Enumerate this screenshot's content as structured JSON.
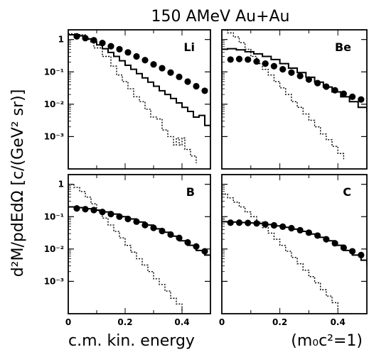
{
  "chart_data": {
    "type": "line",
    "title": "150 AMeV Au+Au",
    "xlabel_main": "c.m. kin. energy",
    "xlabel_units": "(m₀c²=1)",
    "ylabel": "d²M/pdEdΩ  [c/(GeV² sr)]",
    "xlim": [
      0,
      0.5
    ],
    "ylim_log10": [
      -4,
      0.3
    ],
    "x_ticks": [
      {
        "value": 0,
        "label": "0"
      },
      {
        "value": 0.2,
        "label": "0.2"
      },
      {
        "value": 0.4,
        "label": "0.4"
      }
    ],
    "y_ticks": [
      {
        "value": 1,
        "label": "1"
      },
      {
        "value": 0.1,
        "label": "10⁻¹"
      },
      {
        "value": 0.01,
        "label": "10⁻²"
      },
      {
        "value": 0.001,
        "label": "10⁻³"
      }
    ],
    "panels": [
      {
        "label": "Li",
        "points": [
          [
            0.03,
            1.25
          ],
          [
            0.06,
            1.1
          ],
          [
            0.09,
            0.95
          ],
          [
            0.12,
            0.78
          ],
          [
            0.15,
            0.62
          ],
          [
            0.18,
            0.5
          ],
          [
            0.21,
            0.4
          ],
          [
            0.24,
            0.3
          ],
          [
            0.27,
            0.23
          ],
          [
            0.3,
            0.17
          ],
          [
            0.33,
            0.13
          ],
          [
            0.36,
            0.095
          ],
          [
            0.39,
            0.07
          ],
          [
            0.42,
            0.05
          ],
          [
            0.45,
            0.036
          ],
          [
            0.48,
            0.026
          ]
        ],
        "solid": [
          [
            0,
            1.4
          ],
          [
            0.02,
            1.4
          ],
          [
            0.04,
            1.3
          ],
          [
            0.06,
            1.05
          ],
          [
            0.08,
            0.85
          ],
          [
            0.1,
            0.68
          ],
          [
            0.12,
            0.52
          ],
          [
            0.14,
            0.4
          ],
          [
            0.16,
            0.3
          ],
          [
            0.18,
            0.22
          ],
          [
            0.2,
            0.16
          ],
          [
            0.22,
            0.12
          ],
          [
            0.24,
            0.088
          ],
          [
            0.26,
            0.065
          ],
          [
            0.28,
            0.048
          ],
          [
            0.3,
            0.036
          ],
          [
            0.32,
            0.026
          ],
          [
            0.34,
            0.02
          ],
          [
            0.36,
            0.015
          ],
          [
            0.38,
            0.011
          ],
          [
            0.4,
            0.008
          ],
          [
            0.42,
            0.006
          ],
          [
            0.44,
            0.004
          ],
          [
            0.46,
            0.0045
          ],
          [
            0.48,
            0.0022
          ],
          [
            0.5,
            0.0018
          ]
        ],
        "dotted": [
          [
            0,
            1.5
          ],
          [
            0.03,
            1.4
          ],
          [
            0.06,
            1.0
          ],
          [
            0.09,
            0.55
          ],
          [
            0.12,
            0.3
          ],
          [
            0.15,
            0.15
          ],
          [
            0.17,
            0.08
          ],
          [
            0.19,
            0.05
          ],
          [
            0.21,
            0.03
          ],
          [
            0.23,
            0.017
          ],
          [
            0.25,
            0.012
          ],
          [
            0.27,
            0.007
          ],
          [
            0.29,
            0.004
          ],
          [
            0.31,
            0.0035
          ],
          [
            0.33,
            0.0016
          ],
          [
            0.35,
            0.001
          ],
          [
            0.37,
            0.00055
          ],
          [
            0.38,
            0.0009
          ],
          [
            0.39,
            0.00055
          ],
          [
            0.4,
            0.0009
          ],
          [
            0.41,
            0.0004
          ],
          [
            0.43,
            0.00025
          ],
          [
            0.45,
            0.00015
          ]
        ]
      },
      {
        "label": "Be",
        "points": [
          [
            0.03,
            0.24
          ],
          [
            0.06,
            0.25
          ],
          [
            0.09,
            0.24
          ],
          [
            0.12,
            0.21
          ],
          [
            0.15,
            0.18
          ],
          [
            0.18,
            0.15
          ],
          [
            0.21,
            0.12
          ],
          [
            0.24,
            0.095
          ],
          [
            0.27,
            0.075
          ],
          [
            0.3,
            0.058
          ],
          [
            0.33,
            0.045
          ],
          [
            0.36,
            0.035
          ],
          [
            0.39,
            0.027
          ],
          [
            0.42,
            0.021
          ],
          [
            0.45,
            0.017
          ],
          [
            0.48,
            0.014
          ]
        ],
        "solid": [
          [
            0,
            0.5
          ],
          [
            0.02,
            0.52
          ],
          [
            0.05,
            0.48
          ],
          [
            0.08,
            0.42
          ],
          [
            0.11,
            0.36
          ],
          [
            0.14,
            0.3
          ],
          [
            0.17,
            0.24
          ],
          [
            0.2,
            0.18
          ],
          [
            0.23,
            0.13
          ],
          [
            0.26,
            0.095
          ],
          [
            0.29,
            0.068
          ],
          [
            0.32,
            0.048
          ],
          [
            0.35,
            0.034
          ],
          [
            0.38,
            0.024
          ],
          [
            0.41,
            0.017
          ],
          [
            0.44,
            0.012
          ],
          [
            0.47,
            0.008
          ],
          [
            0.5,
            0.0055
          ]
        ],
        "dotted": [
          [
            0,
            2.0
          ],
          [
            0.02,
            1.6
          ],
          [
            0.04,
            1.2
          ],
          [
            0.06,
            0.8
          ],
          [
            0.08,
            0.5
          ],
          [
            0.1,
            0.3
          ],
          [
            0.12,
            0.18
          ],
          [
            0.14,
            0.12
          ],
          [
            0.16,
            0.08
          ],
          [
            0.18,
            0.05
          ],
          [
            0.2,
            0.032
          ],
          [
            0.22,
            0.02
          ],
          [
            0.24,
            0.012
          ],
          [
            0.26,
            0.008
          ],
          [
            0.28,
            0.005
          ],
          [
            0.3,
            0.0032
          ],
          [
            0.32,
            0.002
          ],
          [
            0.34,
            0.0012
          ],
          [
            0.36,
            0.0008
          ],
          [
            0.38,
            0.0005
          ],
          [
            0.4,
            0.0003
          ],
          [
            0.42,
            0.0002
          ]
        ]
      },
      {
        "label": "B",
        "points": [
          [
            0.03,
            0.18
          ],
          [
            0.06,
            0.17
          ],
          [
            0.09,
            0.16
          ],
          [
            0.12,
            0.14
          ],
          [
            0.15,
            0.12
          ],
          [
            0.18,
            0.1
          ],
          [
            0.21,
            0.085
          ],
          [
            0.24,
            0.07
          ],
          [
            0.27,
            0.055
          ],
          [
            0.3,
            0.045
          ],
          [
            0.33,
            0.036
          ],
          [
            0.36,
            0.028
          ],
          [
            0.39,
            0.022
          ],
          [
            0.42,
            0.016
          ],
          [
            0.45,
            0.012
          ],
          [
            0.48,
            0.0085
          ]
        ],
        "solid": [
          [
            0,
            0.2
          ],
          [
            0.03,
            0.19
          ],
          [
            0.06,
            0.175
          ],
          [
            0.09,
            0.16
          ],
          [
            0.12,
            0.14
          ],
          [
            0.15,
            0.12
          ],
          [
            0.18,
            0.1
          ],
          [
            0.21,
            0.085
          ],
          [
            0.24,
            0.068
          ],
          [
            0.27,
            0.055
          ],
          [
            0.3,
            0.042
          ],
          [
            0.33,
            0.033
          ],
          [
            0.36,
            0.025
          ],
          [
            0.39,
            0.018
          ],
          [
            0.42,
            0.013
          ],
          [
            0.45,
            0.009
          ],
          [
            0.48,
            0.0065
          ],
          [
            0.5,
            0.0045
          ]
        ],
        "dotted": [
          [
            0,
            1.0
          ],
          [
            0.02,
            0.8
          ],
          [
            0.04,
            0.6
          ],
          [
            0.06,
            0.4
          ],
          [
            0.08,
            0.25
          ],
          [
            0.1,
            0.15
          ],
          [
            0.12,
            0.09
          ],
          [
            0.14,
            0.055
          ],
          [
            0.16,
            0.035
          ],
          [
            0.18,
            0.022
          ],
          [
            0.2,
            0.013
          ],
          [
            0.22,
            0.008
          ],
          [
            0.24,
            0.005
          ],
          [
            0.26,
            0.0032
          ],
          [
            0.28,
            0.002
          ],
          [
            0.3,
            0.0012
          ],
          [
            0.32,
            0.0008
          ],
          [
            0.34,
            0.0005
          ],
          [
            0.36,
            0.0003
          ],
          [
            0.38,
            0.0002
          ],
          [
            0.4,
            0.00012
          ]
        ]
      },
      {
        "label": "C",
        "points": [
          [
            0.03,
            0.065
          ],
          [
            0.06,
            0.065
          ],
          [
            0.09,
            0.064
          ],
          [
            0.12,
            0.062
          ],
          [
            0.15,
            0.058
          ],
          [
            0.18,
            0.054
          ],
          [
            0.21,
            0.049
          ],
          [
            0.24,
            0.044
          ],
          [
            0.27,
            0.038
          ],
          [
            0.3,
            0.032
          ],
          [
            0.33,
            0.026
          ],
          [
            0.36,
            0.02
          ],
          [
            0.39,
            0.015
          ],
          [
            0.42,
            0.011
          ],
          [
            0.45,
            0.0085
          ],
          [
            0.48,
            0.0065
          ]
        ],
        "solid": [
          [
            0,
            0.07
          ],
          [
            0.03,
            0.068
          ],
          [
            0.06,
            0.066
          ],
          [
            0.09,
            0.064
          ],
          [
            0.12,
            0.061
          ],
          [
            0.15,
            0.057
          ],
          [
            0.18,
            0.052
          ],
          [
            0.21,
            0.047
          ],
          [
            0.24,
            0.041
          ],
          [
            0.27,
            0.035
          ],
          [
            0.3,
            0.029
          ],
          [
            0.33,
            0.023
          ],
          [
            0.36,
            0.018
          ],
          [
            0.39,
            0.013
          ],
          [
            0.42,
            0.009
          ],
          [
            0.45,
            0.0065
          ],
          [
            0.48,
            0.0045
          ],
          [
            0.5,
            0.0032
          ]
        ],
        "dotted": [
          [
            0,
            0.5
          ],
          [
            0.02,
            0.38
          ],
          [
            0.04,
            0.28
          ],
          [
            0.06,
            0.2
          ],
          [
            0.08,
            0.14
          ],
          [
            0.1,
            0.1
          ],
          [
            0.12,
            0.068
          ],
          [
            0.14,
            0.046
          ],
          [
            0.16,
            0.031
          ],
          [
            0.18,
            0.02
          ],
          [
            0.2,
            0.013
          ],
          [
            0.22,
            0.0085
          ],
          [
            0.24,
            0.0055
          ],
          [
            0.26,
            0.0035
          ],
          [
            0.28,
            0.0022
          ],
          [
            0.3,
            0.0014
          ],
          [
            0.32,
            0.0009
          ],
          [
            0.34,
            0.00055
          ],
          [
            0.36,
            0.00035
          ],
          [
            0.38,
            0.00022
          ],
          [
            0.4,
            0.00014
          ]
        ]
      }
    ]
  }
}
